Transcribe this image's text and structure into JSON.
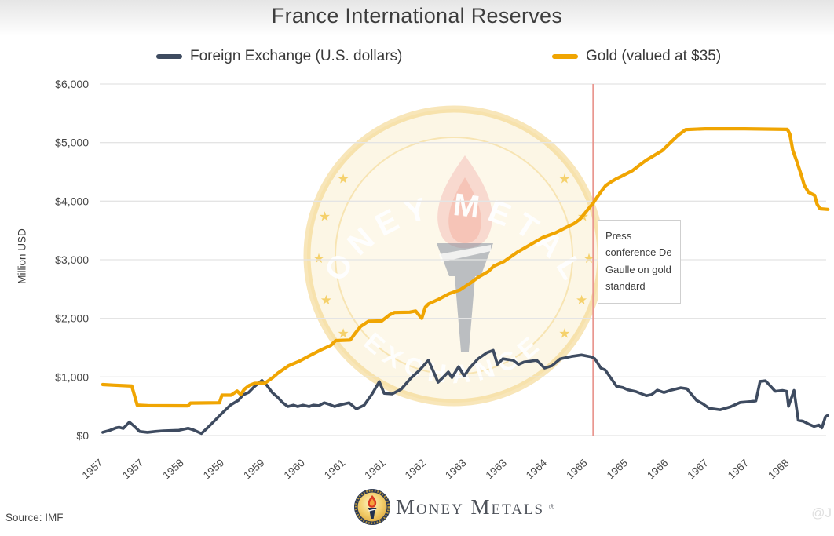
{
  "title": "France International Reserves",
  "legend": [
    {
      "label": "Foreign Exchange (U.S. dollars)"
    },
    {
      "label": "Gold (valued at $35)"
    }
  ],
  "y_axis": {
    "label": "Million USD",
    "ticks": [
      "$6,000",
      "$5,000",
      "$4,000",
      "$3,000",
      "$2,000",
      "$1,000",
      "$0"
    ],
    "tick_values": [
      6000,
      5000,
      4000,
      3000,
      2000,
      1000,
      0
    ]
  },
  "x_axis": {
    "labels": [
      "1957",
      "1957",
      "1958",
      "1959",
      "1959",
      "1960",
      "1961",
      "1961",
      "1962",
      "1963",
      "1963",
      "1964",
      "1965",
      "1965",
      "1966",
      "1967",
      "1967",
      "1968"
    ],
    "positions": [
      1957.0,
      1957.667,
      1958.333,
      1959.0,
      1959.667,
      1960.333,
      1961.0,
      1961.667,
      1962.333,
      1963.0,
      1963.667,
      1964.333,
      1965.0,
      1965.667,
      1966.333,
      1967.0,
      1967.667,
      1968.333
    ]
  },
  "annotation": {
    "text": "Press conference De Gaulle on gold standard",
    "x": 1965.11
  },
  "watermark": {
    "top_text": "MONEY METALS",
    "bottom_text": "EXCHANGE"
  },
  "footer": {
    "source": "Source: IMF",
    "logo_name": "Money Metals",
    "registered": "®",
    "handle": "@J"
  },
  "chart_data": {
    "type": "line",
    "title": "France International Reserves",
    "xlabel": "",
    "ylabel": "Million USD",
    "ylim": [
      0,
      6000
    ],
    "xlim": [
      1957.0,
      1969.0
    ],
    "grid": true,
    "legend_position": "top",
    "event_line": {
      "x": 1965.11,
      "label": "Press conference De Gaulle on gold standard",
      "color": "#E8918A"
    },
    "series": [
      {
        "name": "Foreign Exchange (U.S. dollars)",
        "color": "#3E4B60",
        "points": [
          [
            1957.01,
            55
          ],
          [
            1957.13,
            90
          ],
          [
            1957.23,
            130
          ],
          [
            1957.28,
            140
          ],
          [
            1957.35,
            120
          ],
          [
            1957.45,
            230
          ],
          [
            1957.54,
            150
          ],
          [
            1957.62,
            70
          ],
          [
            1957.75,
            55
          ],
          [
            1957.88,
            70
          ],
          [
            1958.01,
            80
          ],
          [
            1958.27,
            90
          ],
          [
            1958.42,
            125
          ],
          [
            1958.51,
            95
          ],
          [
            1958.64,
            35
          ],
          [
            1958.73,
            120
          ],
          [
            1958.86,
            255
          ],
          [
            1958.99,
            390
          ],
          [
            1959.12,
            520
          ],
          [
            1959.25,
            600
          ],
          [
            1959.33,
            695
          ],
          [
            1959.42,
            735
          ],
          [
            1959.51,
            830
          ],
          [
            1959.64,
            940
          ],
          [
            1959.72,
            860
          ],
          [
            1959.81,
            735
          ],
          [
            1959.9,
            655
          ],
          [
            1959.98,
            565
          ],
          [
            1960.07,
            495
          ],
          [
            1960.16,
            520
          ],
          [
            1960.23,
            495
          ],
          [
            1960.32,
            520
          ],
          [
            1960.42,
            495
          ],
          [
            1960.49,
            520
          ],
          [
            1960.58,
            510
          ],
          [
            1960.67,
            560
          ],
          [
            1960.75,
            535
          ],
          [
            1960.84,
            495
          ],
          [
            1960.91,
            520
          ],
          [
            1961.08,
            560
          ],
          [
            1961.2,
            455
          ],
          [
            1961.33,
            520
          ],
          [
            1961.46,
            710
          ],
          [
            1961.58,
            920
          ],
          [
            1961.66,
            720
          ],
          [
            1961.79,
            710
          ],
          [
            1961.94,
            790
          ],
          [
            1962.11,
            990
          ],
          [
            1962.24,
            1110
          ],
          [
            1962.39,
            1285
          ],
          [
            1962.49,
            1055
          ],
          [
            1962.55,
            910
          ],
          [
            1962.63,
            990
          ],
          [
            1962.72,
            1085
          ],
          [
            1962.78,
            990
          ],
          [
            1962.89,
            1175
          ],
          [
            1962.98,
            1015
          ],
          [
            1963.07,
            1150
          ],
          [
            1963.21,
            1310
          ],
          [
            1963.36,
            1415
          ],
          [
            1963.46,
            1455
          ],
          [
            1963.53,
            1215
          ],
          [
            1963.62,
            1310
          ],
          [
            1963.79,
            1285
          ],
          [
            1963.88,
            1215
          ],
          [
            1963.97,
            1255
          ],
          [
            1964.18,
            1285
          ],
          [
            1964.31,
            1150
          ],
          [
            1964.43,
            1190
          ],
          [
            1964.57,
            1310
          ],
          [
            1964.75,
            1350
          ],
          [
            1964.92,
            1375
          ],
          [
            1965.09,
            1340
          ],
          [
            1965.14,
            1310
          ],
          [
            1965.24,
            1150
          ],
          [
            1965.31,
            1120
          ],
          [
            1965.5,
            840
          ],
          [
            1965.6,
            820
          ],
          [
            1965.69,
            780
          ],
          [
            1965.82,
            750
          ],
          [
            1965.99,
            680
          ],
          [
            1966.08,
            700
          ],
          [
            1966.17,
            775
          ],
          [
            1966.28,
            735
          ],
          [
            1966.4,
            775
          ],
          [
            1966.56,
            815
          ],
          [
            1966.66,
            800
          ],
          [
            1966.82,
            600
          ],
          [
            1966.92,
            545
          ],
          [
            1967.03,
            465
          ],
          [
            1967.21,
            440
          ],
          [
            1967.38,
            490
          ],
          [
            1967.54,
            565
          ],
          [
            1967.72,
            580
          ],
          [
            1967.8,
            590
          ],
          [
            1967.87,
            925
          ],
          [
            1967.96,
            935
          ],
          [
            1968.12,
            756
          ],
          [
            1968.24,
            770
          ],
          [
            1968.31,
            755
          ],
          [
            1968.34,
            500
          ],
          [
            1968.43,
            770
          ],
          [
            1968.5,
            260
          ],
          [
            1968.58,
            245
          ],
          [
            1968.67,
            195
          ],
          [
            1968.76,
            155
          ],
          [
            1968.84,
            180
          ],
          [
            1968.89,
            130
          ],
          [
            1968.95,
            320
          ],
          [
            1968.99,
            345
          ]
        ]
      },
      {
        "name": "Gold (valued at $35)",
        "color": "#F0A502",
        "points": [
          [
            1957.01,
            870
          ],
          [
            1957.2,
            860
          ],
          [
            1957.39,
            850
          ],
          [
            1957.49,
            845
          ],
          [
            1957.53,
            700
          ],
          [
            1957.58,
            520
          ],
          [
            1957.75,
            510
          ],
          [
            1958.42,
            508
          ],
          [
            1958.46,
            555
          ],
          [
            1958.94,
            560
          ],
          [
            1958.98,
            690
          ],
          [
            1959.13,
            690
          ],
          [
            1959.23,
            760
          ],
          [
            1959.29,
            700
          ],
          [
            1959.35,
            790
          ],
          [
            1959.43,
            855
          ],
          [
            1959.52,
            890
          ],
          [
            1959.69,
            895
          ],
          [
            1959.82,
            990
          ],
          [
            1959.91,
            1070
          ],
          [
            1960.08,
            1190
          ],
          [
            1960.26,
            1270
          ],
          [
            1960.43,
            1365
          ],
          [
            1960.6,
            1455
          ],
          [
            1960.78,
            1540
          ],
          [
            1960.86,
            1620
          ],
          [
            1961.1,
            1630
          ],
          [
            1961.17,
            1730
          ],
          [
            1961.27,
            1860
          ],
          [
            1961.4,
            1950
          ],
          [
            1961.62,
            1955
          ],
          [
            1961.75,
            2060
          ],
          [
            1961.83,
            2100
          ],
          [
            1962.08,
            2105
          ],
          [
            1962.18,
            2125
          ],
          [
            1962.28,
            2000
          ],
          [
            1962.34,
            2190
          ],
          [
            1962.39,
            2245
          ],
          [
            1962.56,
            2325
          ],
          [
            1962.73,
            2420
          ],
          [
            1962.91,
            2485
          ],
          [
            1963.08,
            2600
          ],
          [
            1963.21,
            2700
          ],
          [
            1963.38,
            2800
          ],
          [
            1963.47,
            2890
          ],
          [
            1963.64,
            2970
          ],
          [
            1963.86,
            3130
          ],
          [
            1964.08,
            3260
          ],
          [
            1964.28,
            3380
          ],
          [
            1964.5,
            3465
          ],
          [
            1964.67,
            3555
          ],
          [
            1964.8,
            3620
          ],
          [
            1964.89,
            3690
          ],
          [
            1964.98,
            3800
          ],
          [
            1965.05,
            3890
          ],
          [
            1965.11,
            3960
          ],
          [
            1965.15,
            4025
          ],
          [
            1965.24,
            4160
          ],
          [
            1965.32,
            4265
          ],
          [
            1965.41,
            4330
          ],
          [
            1965.5,
            4385
          ],
          [
            1965.58,
            4425
          ],
          [
            1965.76,
            4520
          ],
          [
            1965.89,
            4625
          ],
          [
            1965.99,
            4700
          ],
          [
            1966.12,
            4780
          ],
          [
            1966.25,
            4860
          ],
          [
            1966.38,
            4990
          ],
          [
            1966.51,
            5120
          ],
          [
            1966.64,
            5220
          ],
          [
            1966.96,
            5235
          ],
          [
            1967.61,
            5235
          ],
          [
            1968.32,
            5225
          ],
          [
            1968.36,
            5150
          ],
          [
            1968.41,
            4870
          ],
          [
            1968.47,
            4700
          ],
          [
            1968.54,
            4480
          ],
          [
            1968.6,
            4270
          ],
          [
            1968.67,
            4150
          ],
          [
            1968.77,
            4100
          ],
          [
            1968.81,
            3950
          ],
          [
            1968.86,
            3870
          ],
          [
            1968.99,
            3860
          ]
        ]
      }
    ]
  }
}
